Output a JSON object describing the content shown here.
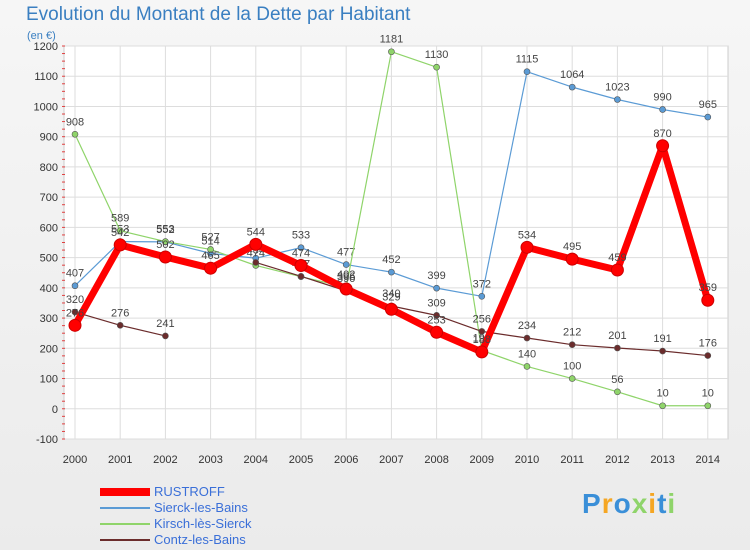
{
  "chart_data": {
    "type": "line",
    "title": "Evolution du Montant de la Dette par Habitant",
    "unit": "(en €)",
    "x": [
      "2000",
      "2001",
      "2002",
      "2003",
      "2004",
      "2005",
      "2006",
      "2007",
      "2008",
      "2009",
      "2010",
      "2011",
      "2012",
      "2013",
      "2014"
    ],
    "ylim": [
      -100,
      1200
    ],
    "yticks": [
      -100,
      0,
      100,
      200,
      300,
      400,
      500,
      600,
      700,
      800,
      900,
      1000,
      1100,
      1200
    ],
    "grid": true,
    "legend_position": "bottom-left",
    "series": [
      {
        "name": "Sierck-les-Bains",
        "color": "#5b9bd5",
        "values": [
          407,
          553,
          552,
          514,
          498,
          533,
          477,
          452,
          399,
          372,
          1115,
          1064,
          1023,
          990,
          965
        ],
        "labels": [
          "407",
          "553",
          "552",
          "514",
          "",
          "533",
          "477",
          "452",
          "399",
          "372",
          "1115",
          "1064",
          "1023",
          "990",
          "965"
        ]
      },
      {
        "name": "Kirsch-lès-Sierck",
        "color": "#8fd46a",
        "values": [
          908,
          589,
          553,
          527,
          474,
          437,
          402,
          1181,
          1130,
          193,
          140,
          100,
          56,
          10,
          10
        ],
        "labels": [
          "908",
          "589",
          "553",
          "527",
          "474",
          "437",
          "402",
          "1181",
          "1130",
          "193",
          "140",
          "100",
          "56",
          "10",
          "10"
        ]
      },
      {
        "name": "Contz-les-Bains",
        "color": "#6b2c2c",
        "values": [
          320,
          276,
          241,
          null,
          484,
          438,
          390,
          340,
          309,
          256,
          234,
          212,
          201,
          191,
          176
        ],
        "labels": [
          "320",
          "276",
          "241",
          "",
          "484",
          "",
          "390",
          "340",
          "309",
          "256",
          "234",
          "212",
          "201",
          "191",
          "176"
        ]
      },
      {
        "name": "RUSTROFF",
        "color": "#ff0000",
        "values": [
          276,
          542,
          502,
          465,
          544,
          474,
          396,
          329,
          253,
          188,
          534,
          495,
          459,
          870,
          359
        ],
        "labels": [
          "276",
          "542",
          "502",
          "465",
          "544",
          "474",
          "396",
          "329",
          "253",
          "188",
          "534",
          "495",
          "459",
          "870",
          "359"
        ]
      }
    ],
    "legend": [
      "RUSTROFF",
      "Sierck-les-Bains",
      "Kirsch-lès-Sierck",
      "Contz-les-Bains"
    ]
  },
  "brand": {
    "logo_text": "Proxiti",
    "letters": [
      {
        "ch": "P",
        "color": "#3a8fd8"
      },
      {
        "ch": "r",
        "color": "#f5a623"
      },
      {
        "ch": "o",
        "color": "#3a8fd8"
      },
      {
        "ch": "x",
        "color": "#8fd46a"
      },
      {
        "ch": "i",
        "color": "#f5a623"
      },
      {
        "ch": "t",
        "color": "#3a8fd8"
      },
      {
        "ch": "i",
        "color": "#8fd46a"
      }
    ]
  }
}
